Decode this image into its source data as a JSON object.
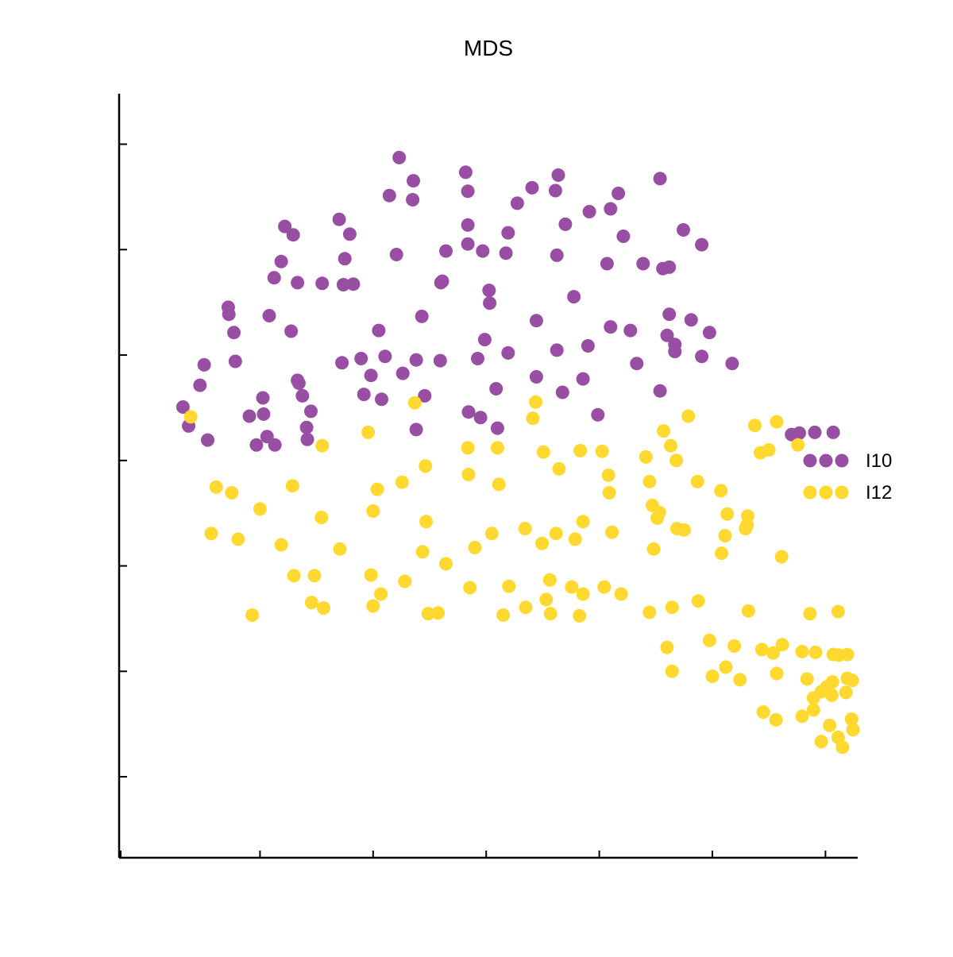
{
  "chart_data": {
    "type": "scatter",
    "title": "MDS",
    "xlabel": "",
    "ylabel": "",
    "xlim": [
      0,
      1
    ],
    "ylim": [
      0,
      1
    ],
    "x_ticks": [
      0,
      0.16,
      0.32,
      0.48,
      0.64,
      0.8,
      0.96
    ],
    "y_ticks": [
      0.07,
      0.22,
      0.37,
      0.52,
      0.67,
      0.82,
      0.97
    ],
    "tick_labels_shown": false,
    "grid": false,
    "legend_position": "right",
    "series": [
      {
        "name": "I10",
        "color": "#984ea3",
        "points": [
          [
            0.357,
            0.951
          ],
          [
            0.377,
            0.918
          ],
          [
            0.451,
            0.93
          ],
          [
            0.582,
            0.926
          ],
          [
            0.726,
            0.921
          ],
          [
            0.343,
            0.897
          ],
          [
            0.376,
            0.891
          ],
          [
            0.454,
            0.903
          ],
          [
            0.545,
            0.908
          ],
          [
            0.578,
            0.904
          ],
          [
            0.667,
            0.9
          ],
          [
            0.524,
            0.886
          ],
          [
            0.626,
            0.874
          ],
          [
            0.592,
            0.856
          ],
          [
            0.195,
            0.853
          ],
          [
            0.272,
            0.863
          ],
          [
            0.656,
            0.878
          ],
          [
            0.207,
            0.841
          ],
          [
            0.287,
            0.842
          ],
          [
            0.454,
            0.855
          ],
          [
            0.511,
            0.844
          ],
          [
            0.759,
            0.848
          ],
          [
            0.423,
            0.818
          ],
          [
            0.475,
            0.818
          ],
          [
            0.454,
            0.828
          ],
          [
            0.508,
            0.815
          ],
          [
            0.674,
            0.839
          ],
          [
            0.785,
            0.827
          ],
          [
            0.28,
            0.807
          ],
          [
            0.19,
            0.803
          ],
          [
            0.353,
            0.813
          ],
          [
            0.58,
            0.812
          ],
          [
            0.651,
            0.8
          ],
          [
            0.18,
            0.78
          ],
          [
            0.248,
            0.772
          ],
          [
            0.213,
            0.773
          ],
          [
            0.278,
            0.77
          ],
          [
            0.292,
            0.771
          ],
          [
            0.418,
            0.775
          ],
          [
            0.702,
            0.8
          ],
          [
            0.73,
            0.793
          ],
          [
            0.739,
            0.795
          ],
          [
            0.484,
            0.762
          ],
          [
            0.416,
            0.773
          ],
          [
            0.485,
            0.744
          ],
          [
            0.604,
            0.753
          ],
          [
            0.115,
            0.738
          ],
          [
            0.116,
            0.728
          ],
          [
            0.173,
            0.726
          ],
          [
            0.389,
            0.725
          ],
          [
            0.739,
            0.728
          ],
          [
            0.77,
            0.72
          ],
          [
            0.551,
            0.719
          ],
          [
            0.328,
            0.705
          ],
          [
            0.204,
            0.704
          ],
          [
            0.656,
            0.71
          ],
          [
            0.684,
            0.705
          ],
          [
            0.123,
            0.702
          ],
          [
            0.796,
            0.702
          ],
          [
            0.478,
            0.692
          ],
          [
            0.511,
            0.673
          ],
          [
            0.58,
            0.677
          ],
          [
            0.747,
            0.675
          ],
          [
            0.624,
            0.683
          ],
          [
            0.736,
            0.698
          ],
          [
            0.785,
            0.668
          ],
          [
            0.747,
            0.685
          ],
          [
            0.081,
            0.656
          ],
          [
            0.303,
            0.665
          ],
          [
            0.337,
            0.668
          ],
          [
            0.468,
            0.665
          ],
          [
            0.381,
            0.663
          ],
          [
            0.415,
            0.662
          ],
          [
            0.125,
            0.661
          ],
          [
            0.075,
            0.627
          ],
          [
            0.215,
            0.63
          ],
          [
            0.276,
            0.659
          ],
          [
            0.693,
            0.658
          ],
          [
            0.362,
            0.644
          ],
          [
            0.213,
            0.634
          ],
          [
            0.317,
            0.641
          ],
          [
            0.828,
            0.658
          ],
          [
            0.307,
            0.614
          ],
          [
            0.22,
            0.612
          ],
          [
            0.551,
            0.639
          ],
          [
            0.617,
            0.636
          ],
          [
            0.332,
            0.607
          ],
          [
            0.165,
            0.586
          ],
          [
            0.145,
            0.583
          ],
          [
            0.472,
            0.581
          ],
          [
            0.494,
            0.622
          ],
          [
            0.726,
            0.619
          ],
          [
            0.588,
            0.617
          ],
          [
            0.051,
            0.596
          ],
          [
            0.164,
            0.609
          ],
          [
            0.232,
            0.59
          ],
          [
            0.393,
            0.612
          ],
          [
            0.455,
            0.589
          ],
          [
            0.638,
            0.585
          ],
          [
            0.226,
            0.567
          ],
          [
            0.496,
            0.566
          ],
          [
            0.381,
            0.564
          ],
          [
            0.086,
            0.549
          ],
          [
            0.155,
            0.542
          ],
          [
            0.227,
            0.55
          ],
          [
            0.912,
            0.557
          ],
          [
            0.971,
            0.56
          ],
          [
            0.945,
            0.56
          ],
          [
            0.923,
            0.559
          ],
          [
            0.059,
            0.569
          ],
          [
            0.17,
            0.554
          ],
          [
            0.181,
            0.542
          ]
        ]
      },
      {
        "name": "I12",
        "color": "#ffd92f",
        "points": [
          [
            0.379,
            0.602
          ],
          [
            0.55,
            0.603
          ],
          [
            0.062,
            0.582
          ],
          [
            0.546,
            0.58
          ],
          [
            0.86,
            0.57
          ],
          [
            0.891,
            0.575
          ],
          [
            0.313,
            0.56
          ],
          [
            0.766,
            0.583
          ],
          [
            0.731,
            0.562
          ],
          [
            0.88,
            0.535
          ],
          [
            0.496,
            0.538
          ],
          [
            0.741,
            0.541
          ],
          [
            0.921,
            0.542
          ],
          [
            0.868,
            0.531
          ],
          [
            0.248,
            0.541
          ],
          [
            0.394,
            0.512
          ],
          [
            0.454,
            0.538
          ],
          [
            0.561,
            0.532
          ],
          [
            0.613,
            0.534
          ],
          [
            0.644,
            0.533
          ],
          [
            0.706,
            0.525
          ],
          [
            0.749,
            0.52
          ],
          [
            0.583,
            0.508
          ],
          [
            0.455,
            0.5
          ],
          [
            0.653,
            0.499
          ],
          [
            0.098,
            0.482
          ],
          [
            0.12,
            0.474
          ],
          [
            0.206,
            0.484
          ],
          [
            0.326,
            0.479
          ],
          [
            0.361,
            0.489
          ],
          [
            0.498,
            0.486
          ],
          [
            0.711,
            0.49
          ],
          [
            0.779,
            0.49
          ],
          [
            0.812,
            0.477
          ],
          [
            0.821,
            0.444
          ],
          [
            0.715,
            0.456
          ],
          [
            0.654,
            0.474
          ],
          [
            0.85,
            0.441
          ],
          [
            0.725,
            0.446
          ],
          [
            0.16,
            0.451
          ],
          [
            0.32,
            0.448
          ],
          [
            0.247,
            0.439
          ],
          [
            0.395,
            0.433
          ],
          [
            0.617,
            0.433
          ],
          [
            0.722,
            0.438
          ],
          [
            0.535,
            0.423
          ],
          [
            0.658,
            0.418
          ],
          [
            0.488,
            0.416
          ],
          [
            0.847,
            0.423
          ],
          [
            0.849,
            0.428
          ],
          [
            0.559,
            0.402
          ],
          [
            0.464,
            0.396
          ],
          [
            0.579,
            0.416
          ],
          [
            0.606,
            0.408
          ],
          [
            0.898,
            0.383
          ],
          [
            0.75,
            0.423
          ],
          [
            0.76,
            0.421
          ],
          [
            0.091,
            0.416
          ],
          [
            0.129,
            0.408
          ],
          [
            0.19,
            0.4
          ],
          [
            0.273,
            0.394
          ],
          [
            0.39,
            0.39
          ],
          [
            0.423,
            0.373
          ],
          [
            0.717,
            0.394
          ],
          [
            0.818,
            0.413
          ],
          [
            0.813,
            0.388
          ],
          [
            0.208,
            0.356
          ],
          [
            0.237,
            0.356
          ],
          [
            0.317,
            0.357
          ],
          [
            0.365,
            0.348
          ],
          [
            0.331,
            0.33
          ],
          [
            0.57,
            0.35
          ],
          [
            0.512,
            0.341
          ],
          [
            0.457,
            0.339
          ],
          [
            0.601,
            0.34
          ],
          [
            0.647,
            0.34
          ],
          [
            0.617,
            0.33
          ],
          [
            0.671,
            0.33
          ],
          [
            0.565,
            0.322
          ],
          [
            0.32,
            0.313
          ],
          [
            0.412,
            0.303
          ],
          [
            0.536,
            0.311
          ],
          [
            0.571,
            0.302
          ],
          [
            0.149,
            0.3
          ],
          [
            0.233,
            0.318
          ],
          [
            0.25,
            0.31
          ],
          [
            0.398,
            0.302
          ],
          [
            0.504,
            0.3
          ],
          [
            0.612,
            0.299
          ],
          [
            0.711,
            0.304
          ],
          [
            0.743,
            0.311
          ],
          [
            0.78,
            0.32
          ],
          [
            0.851,
            0.306
          ],
          [
            0.938,
            0.302
          ],
          [
            0.978,
            0.305
          ],
          [
            0.831,
            0.256
          ],
          [
            0.736,
            0.254
          ],
          [
            0.796,
            0.264
          ],
          [
            0.87,
            0.251
          ],
          [
            0.899,
            0.258
          ],
          [
            0.886,
            0.246
          ],
          [
            0.927,
            0.248
          ],
          [
            0.946,
            0.247
          ],
          [
            0.971,
            0.244
          ],
          [
            0.979,
            0.243
          ],
          [
            0.991,
            0.244
          ],
          [
            0.819,
            0.226
          ],
          [
            0.743,
            0.22
          ],
          [
            0.8,
            0.213
          ],
          [
            0.839,
            0.208
          ],
          [
            0.891,
            0.217
          ],
          [
            0.934,
            0.209
          ],
          [
            0.97,
            0.205
          ],
          [
            0.991,
            0.21
          ],
          [
            0.998,
            0.207
          ],
          [
            0.943,
            0.182
          ],
          [
            0.962,
            0.198
          ],
          [
            0.954,
            0.191
          ],
          [
            0.969,
            0.186
          ],
          [
            0.989,
            0.19
          ],
          [
            0.89,
            0.151
          ],
          [
            0.872,
            0.162
          ],
          [
            0.943,
            0.165
          ],
          [
            0.927,
            0.156
          ],
          [
            0.966,
            0.143
          ],
          [
            0.954,
            0.12
          ],
          [
            0.978,
            0.126
          ],
          [
            0.997,
            0.152
          ],
          [
            0.999,
            0.137
          ],
          [
            0.984,
            0.112
          ]
        ]
      }
    ]
  }
}
